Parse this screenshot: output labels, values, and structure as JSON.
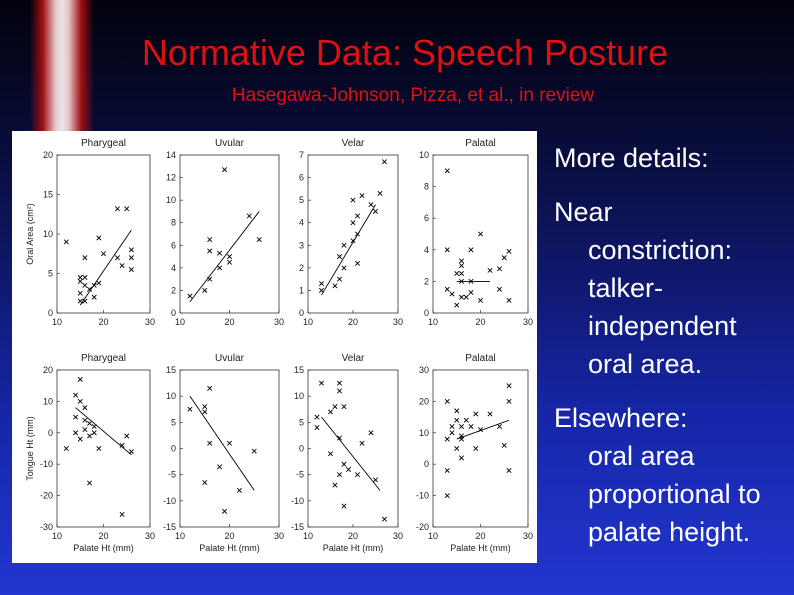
{
  "header": {
    "title": "Normative Data: Speech Posture",
    "subtitle": "Hasegawa-Johnson, Pizza, et al., in review"
  },
  "chart_data": [
    {
      "type": "scatter",
      "title": "Pharygeal",
      "ylabel": "Oral Area (cm²)",
      "color": "#000000",
      "x": [
        23,
        25,
        19,
        12,
        20,
        16,
        26,
        26,
        24,
        15,
        15,
        16,
        16,
        17,
        18,
        19,
        15,
        16,
        18,
        15,
        26,
        23
      ],
      "y": [
        13.2,
        13.2,
        9.5,
        9,
        7.5,
        7,
        7,
        8,
        6,
        4.5,
        4,
        4.5,
        3.5,
        3,
        3.5,
        3.8,
        1.5,
        1.5,
        2,
        2.5,
        5.5,
        7
      ],
      "fit": {
        "x": [
          15,
          26
        ],
        "y": [
          1,
          10.5
        ]
      },
      "xlim": [
        10,
        30
      ],
      "ylim": [
        0,
        20
      ],
      "xticks": [
        10,
        20,
        30
      ],
      "yticks": [
        0,
        5,
        10,
        15,
        20
      ]
    },
    {
      "type": "scatter",
      "title": "Uvular",
      "color": "#000000",
      "x": [
        19,
        24,
        16,
        16,
        20,
        18,
        26,
        15,
        16,
        12,
        18,
        20
      ],
      "y": [
        12.7,
        8.6,
        6.5,
        5.5,
        5,
        5.3,
        6.5,
        2,
        3,
        1.5,
        4,
        4.5
      ],
      "fit": {
        "x": [
          12,
          26
        ],
        "y": [
          1,
          9
        ]
      },
      "xlim": [
        10,
        30
      ],
      "ylim": [
        0,
        14
      ],
      "xticks": [
        10,
        20,
        30
      ],
      "yticks": [
        0,
        2,
        4,
        6,
        8,
        10,
        12,
        14
      ]
    },
    {
      "type": "scatter",
      "title": "Velar",
      "color": "#000000",
      "x": [
        27,
        26,
        22,
        20,
        21,
        20,
        21,
        20,
        25,
        24,
        18,
        17,
        18,
        13,
        13,
        16,
        21,
        17
      ],
      "y": [
        6.7,
        5.3,
        5.2,
        5,
        4.3,
        4,
        3.5,
        3.2,
        4.5,
        4.8,
        3,
        2.5,
        2,
        1,
        1.3,
        1.2,
        2.2,
        1.5
      ],
      "fit": {
        "x": [
          13,
          25
        ],
        "y": [
          0.8,
          4.8
        ]
      },
      "xlim": [
        10,
        30
      ],
      "ylim": [
        0,
        7
      ],
      "xticks": [
        10,
        20,
        30
      ],
      "yticks": [
        0,
        1,
        2,
        3,
        4,
        5,
        6,
        7
      ]
    },
    {
      "type": "scatter",
      "title": "Palatal",
      "color": "#000000",
      "x": [
        13,
        20,
        13,
        18,
        16,
        16,
        16,
        22,
        24,
        25,
        26,
        13,
        14,
        15,
        16,
        18,
        17,
        20,
        24,
        26,
        18,
        16,
        15
      ],
      "y": [
        9,
        5,
        4,
        4,
        3,
        3.3,
        2.5,
        2.7,
        2.8,
        3.5,
        3.9,
        1.5,
        1.2,
        0.5,
        1,
        1.3,
        1,
        0.8,
        1.5,
        0.8,
        2,
        2,
        2.5
      ],
      "fit": {
        "x": [
          15,
          22
        ],
        "y": [
          2,
          2
        ]
      },
      "xlim": [
        10,
        30
      ],
      "ylim": [
        0,
        10
      ],
      "xticks": [
        10,
        20,
        30
      ],
      "yticks": [
        0,
        2,
        4,
        6,
        8,
        10
      ]
    },
    {
      "type": "scatter",
      "title": "Pharygeal",
      "ylabel": "Tongue Ht (mm)",
      "xlabel": "Palate Ht (mm)",
      "color": "#000000",
      "x": [
        15,
        14,
        15,
        16,
        14,
        16,
        17,
        18,
        16,
        14,
        15,
        17,
        18,
        12,
        19,
        24,
        26,
        25,
        17,
        24
      ],
      "y": [
        17,
        12,
        10,
        8,
        5,
        4,
        3,
        2,
        1,
        0,
        -2,
        -1,
        0,
        -5,
        -5,
        -4,
        -6,
        -1,
        -16,
        -26
      ],
      "fit": {
        "x": [
          14,
          26
        ],
        "y": [
          8,
          -7
        ]
      },
      "xlim": [
        10,
        30
      ],
      "ylim": [
        -30,
        20
      ],
      "xticks": [
        10,
        20,
        30
      ],
      "yticks": [
        -30,
        -20,
        -10,
        0,
        10,
        20
      ]
    },
    {
      "type": "scatter",
      "title": "Uvular",
      "xlabel": "Palate Ht (mm)",
      "color": "#000000",
      "x": [
        16,
        15,
        15,
        12,
        16,
        20,
        18,
        15,
        22,
        25,
        19
      ],
      "y": [
        11.5,
        8,
        7,
        7.5,
        1,
        1,
        -3.5,
        -6.5,
        -8,
        -0.5,
        -12
      ],
      "fit": {
        "x": [
          12,
          25
        ],
        "y": [
          10,
          -8
        ]
      },
      "xlim": [
        10,
        30
      ],
      "ylim": [
        -15,
        15
      ],
      "xticks": [
        10,
        20,
        30
      ],
      "yticks": [
        -15,
        -10,
        -5,
        0,
        5,
        10,
        15
      ]
    },
    {
      "type": "scatter",
      "title": "Velar",
      "xlabel": "Palate Ht (mm)",
      "color": "#000000",
      "x": [
        13,
        17,
        17,
        16,
        15,
        18,
        12,
        12,
        17,
        15,
        18,
        19,
        17,
        21,
        25,
        16,
        22,
        24,
        18,
        27
      ],
      "y": [
        12.5,
        12.5,
        11,
        8,
        7,
        8,
        6,
        4,
        2,
        -1,
        -3,
        -4,
        -5,
        -5,
        -6,
        -7,
        1,
        3,
        -11,
        -13.5
      ],
      "fit": {
        "x": [
          13,
          26
        ],
        "y": [
          6,
          -8
        ]
      },
      "xlim": [
        10,
        30
      ],
      "ylim": [
        -15,
        15
      ],
      "xticks": [
        10,
        20,
        30
      ],
      "yticks": [
        -15,
        -10,
        -5,
        0,
        5,
        10,
        15
      ]
    },
    {
      "type": "scatter",
      "title": "Palatal",
      "xlabel": "Palate Ht (mm)",
      "color": "#000000",
      "x": [
        26,
        26,
        13,
        15,
        19,
        22,
        15,
        17,
        14,
        16,
        18,
        20,
        24,
        14,
        16,
        16,
        13,
        15,
        19,
        25,
        16,
        13,
        26,
        13
      ],
      "y": [
        25,
        20,
        20,
        17,
        16,
        16,
        14,
        14,
        12,
        12,
        12,
        11,
        12,
        10,
        9,
        8,
        8,
        5,
        5,
        6,
        2,
        -2,
        -2,
        -10
      ],
      "fit": {
        "x": [
          15,
          26
        ],
        "y": [
          8,
          14
        ]
      },
      "xlim": [
        10,
        30
      ],
      "ylim": [
        -20,
        30
      ],
      "xticks": [
        10,
        20,
        30
      ],
      "yticks": [
        -20,
        -10,
        0,
        10,
        20,
        30
      ]
    }
  ],
  "bullets": [
    {
      "lead": "More details:"
    },
    {
      "lead": "Near",
      "lines": [
        "constriction:",
        "talker-",
        "independent",
        "oral area."
      ]
    },
    {
      "lead": "Elsewhere:",
      "lines": [
        "oral area",
        "proportional to",
        "palate height."
      ]
    }
  ]
}
